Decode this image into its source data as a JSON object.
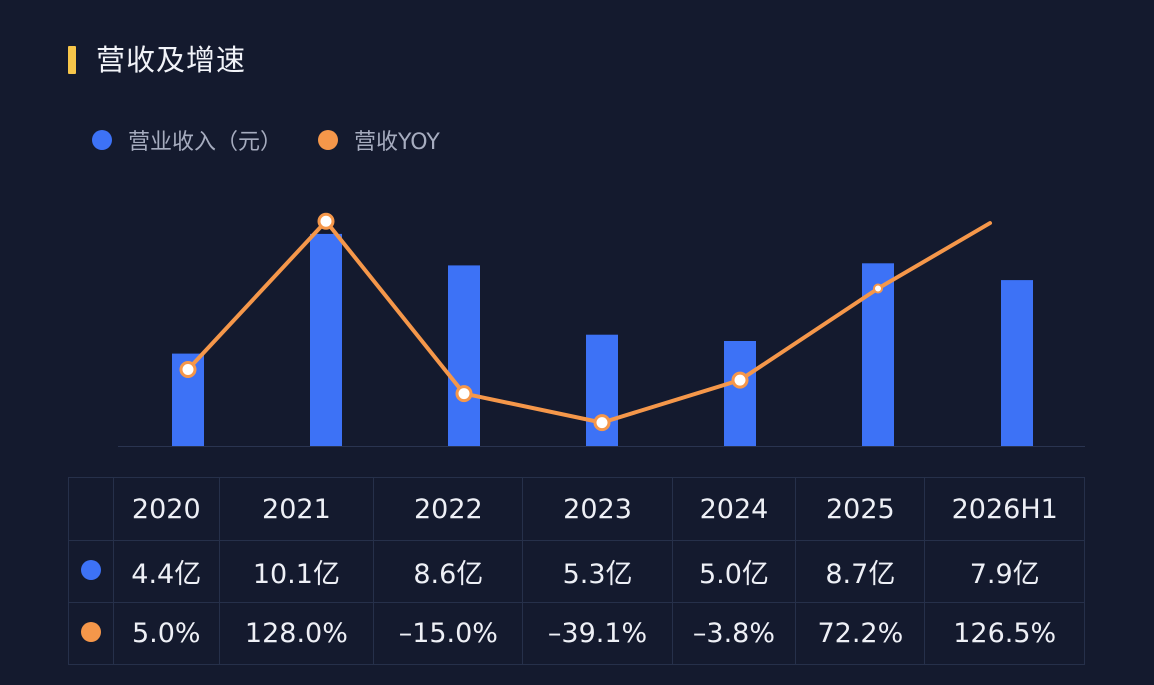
{
  "title": "营收及增速",
  "colors": {
    "accent": "#f7c64a",
    "revenue": "#3d72f6",
    "yoy": "#f5974a",
    "background": "#141a2e"
  },
  "chart_data": {
    "type": "bar",
    "title": "",
    "categories": [
      "2020",
      "2021",
      "2022",
      "2023",
      "2024",
      "2025",
      "2026H1"
    ],
    "series": [
      {
        "name": "营业收入（元）",
        "type": "bar",
        "values": [
          4.4,
          10.1,
          8.6,
          5.3,
          5.0,
          8.7,
          7.9
        ],
        "labels": [
          "4.4亿",
          "10.1亿",
          "8.6亿",
          "5.3亿",
          "5.0亿",
          "8.7亿",
          "7.9亿"
        ]
      },
      {
        "name": "营收YOY",
        "type": "line",
        "values": [
          5.0,
          128.0,
          -15.0,
          -39.1,
          -3.8,
          72.2,
          126.5
        ],
        "labels": [
          "5.0%",
          "128.0%",
          "–15.0%",
          "–39.1%",
          "–3.8%",
          "72.2%",
          "126.5%"
        ]
      }
    ],
    "legend_position": "top-left",
    "grid": false
  }
}
